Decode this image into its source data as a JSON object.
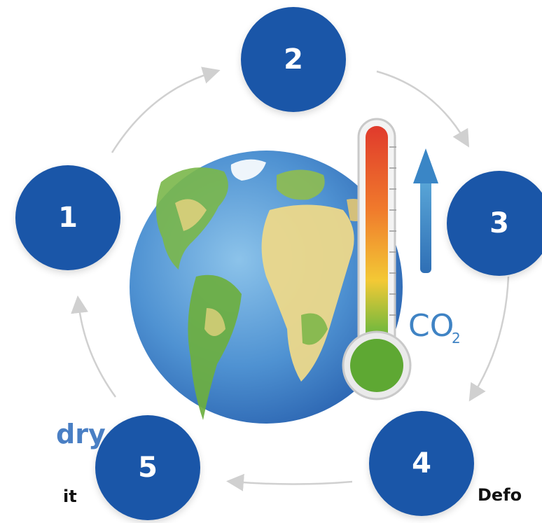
{
  "nodes": [
    {
      "id": "1",
      "label": "1"
    },
    {
      "id": "2",
      "label": "2"
    },
    {
      "id": "3",
      "label": "3"
    },
    {
      "id": "4",
      "label": "4"
    },
    {
      "id": "5",
      "label": "5"
    }
  ],
  "snippets": {
    "left_heading": "dry",
    "left_subtext": "it",
    "right_subtext": "Defo"
  },
  "illustration": {
    "co2_label": "CO",
    "co2_sub": "2"
  },
  "colors": {
    "node_fill": "#1a56a8",
    "arrow": "#d0d0d0",
    "heading_blue": "#4a7fc4"
  }
}
